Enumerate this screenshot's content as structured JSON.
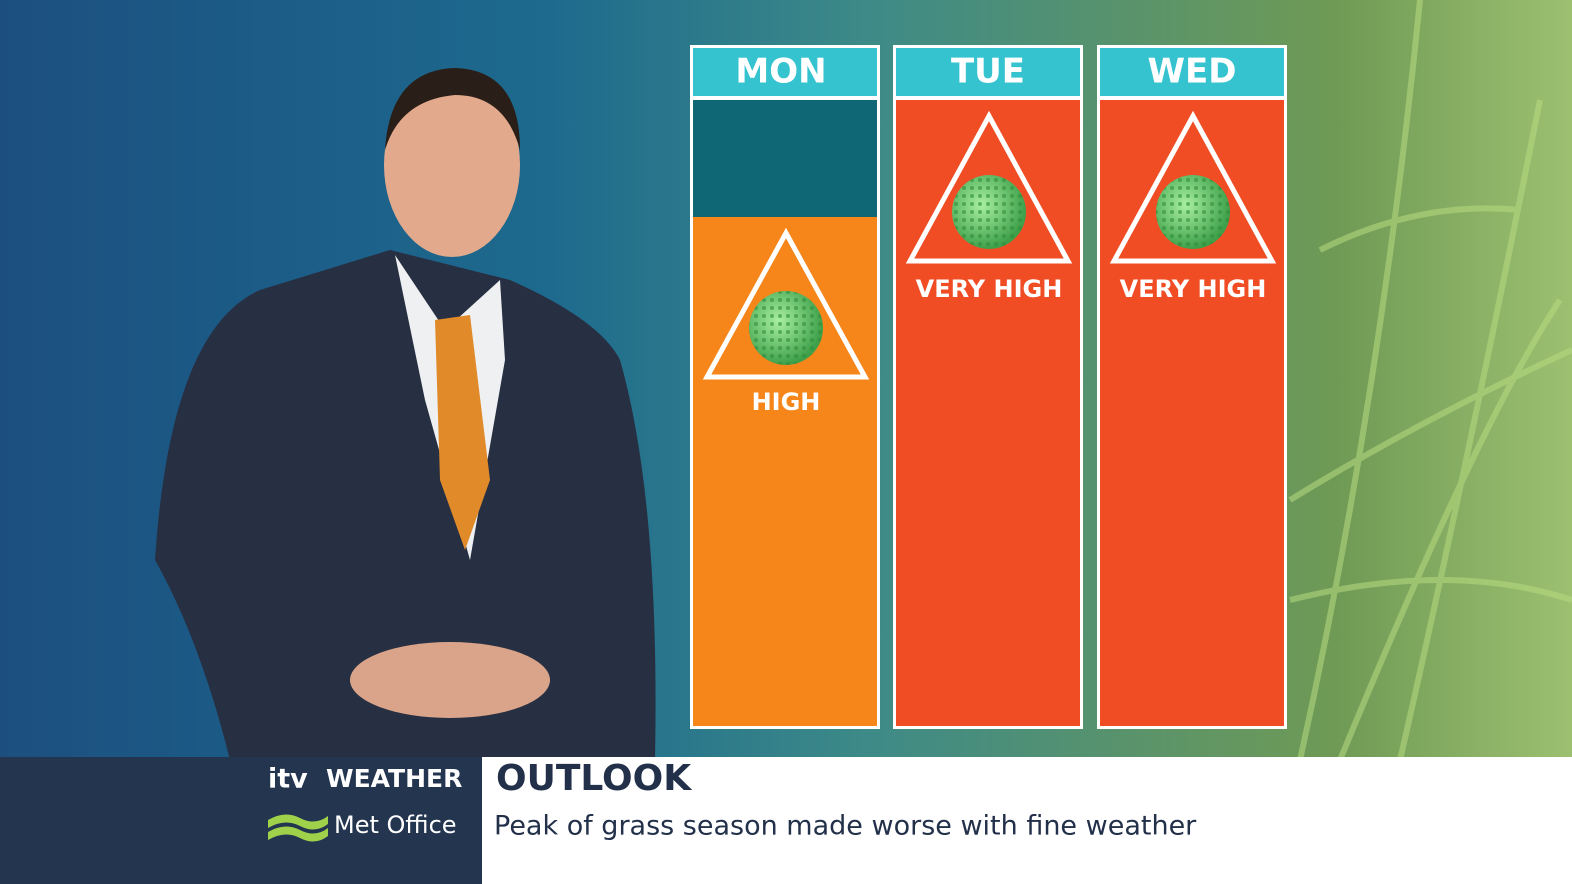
{
  "forecast": {
    "days": [
      {
        "day": "MON",
        "level": "HIGH"
      },
      {
        "day": "TUE",
        "level": "VERY HIGH"
      },
      {
        "day": "WED",
        "level": "VERY HIGH"
      }
    ]
  },
  "footer": {
    "logo": "itv",
    "brand": "WEATHER",
    "partner": "Met Office",
    "heading": "OUTLOOK",
    "caption": "Peak of grass season made worse with fine weather"
  }
}
